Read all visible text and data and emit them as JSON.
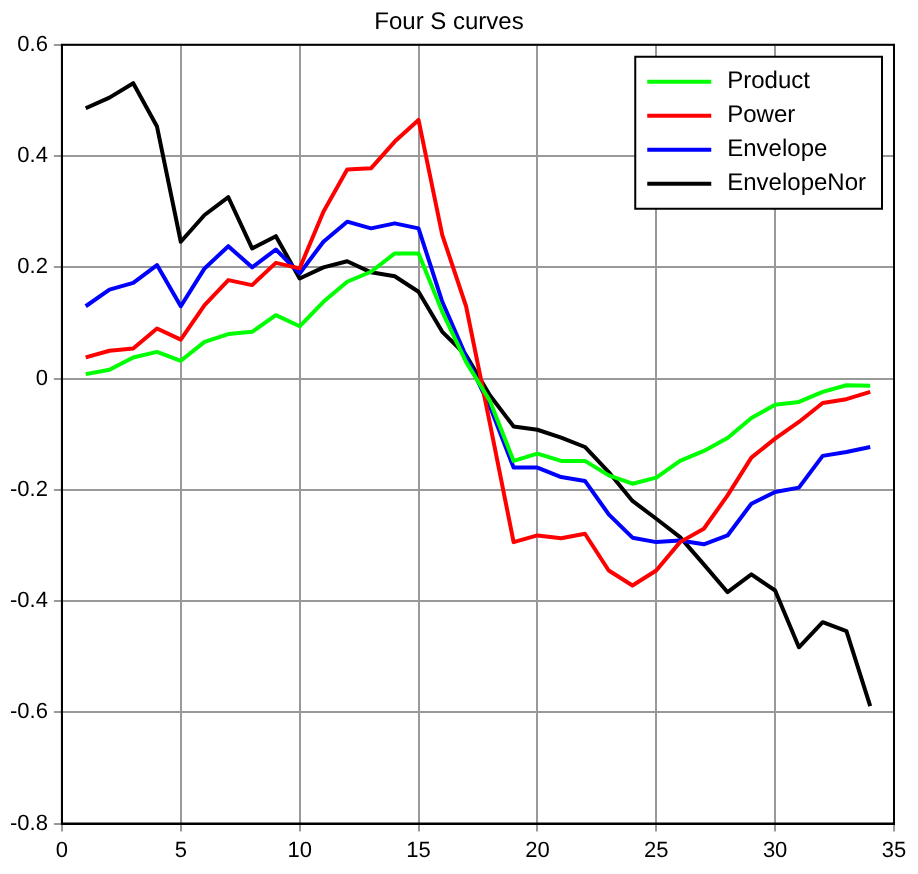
{
  "chart_data": {
    "type": "line",
    "title": "Four S curves",
    "x": [
      1,
      2,
      3,
      4,
      5,
      6,
      7,
      8,
      9,
      10,
      11,
      12,
      13,
      14,
      15,
      16,
      17,
      18,
      19,
      20,
      21,
      22,
      23,
      24,
      25,
      26,
      27,
      28,
      29,
      30,
      31,
      32,
      33,
      34
    ],
    "xlim": [
      0,
      35
    ],
    "xticks": [
      0,
      5,
      10,
      15,
      20,
      25,
      30,
      35
    ],
    "ylim": [
      -0.8,
      0.6
    ],
    "yticks": [
      -0.8,
      -0.6,
      -0.4,
      -0.2,
      0,
      0.2,
      0.4,
      0.6
    ],
    "grid": true,
    "legend": "top right",
    "marker": "none",
    "line_style": "solid",
    "series": [
      {
        "name": "Product",
        "color": "#00ff00",
        "values": [
          0.008,
          0.016,
          0.038,
          0.048,
          0.032,
          0.066,
          0.08,
          0.084,
          0.114,
          0.094,
          0.138,
          0.174,
          0.192,
          0.225,
          0.225,
          0.12,
          0.03,
          -0.04,
          -0.148,
          -0.135,
          -0.148,
          -0.148,
          -0.174,
          -0.189,
          -0.178,
          -0.148,
          -0.13,
          -0.107,
          -0.071,
          -0.047,
          -0.042,
          -0.024,
          -0.012,
          -0.013
        ]
      },
      {
        "name": "Power",
        "color": "#ff0000",
        "values": [
          0.038,
          0.05,
          0.054,
          0.09,
          0.07,
          0.132,
          0.177,
          0.168,
          0.208,
          0.198,
          0.3,
          0.376,
          0.378,
          0.426,
          0.465,
          0.258,
          0.13,
          -0.08,
          -0.294,
          -0.282,
          -0.287,
          -0.279,
          -0.345,
          -0.372,
          -0.345,
          -0.294,
          -0.27,
          -0.21,
          -0.142,
          -0.108,
          -0.078,
          -0.044,
          -0.037,
          -0.024
        ]
      },
      {
        "name": "Envelope",
        "color": "#0000ff",
        "values": [
          0.13,
          0.16,
          0.172,
          0.204,
          0.13,
          0.198,
          0.238,
          0.2,
          0.232,
          0.189,
          0.246,
          0.282,
          0.27,
          0.279,
          0.27,
          0.138,
          0.04,
          -0.05,
          -0.16,
          -0.16,
          -0.177,
          -0.184,
          -0.244,
          -0.286,
          -0.294,
          -0.291,
          -0.298,
          -0.282,
          -0.225,
          -0.204,
          -0.196,
          -0.139,
          -0.132,
          -0.123
        ]
      },
      {
        "name": "EnvelopeNor",
        "color": "#000000",
        "values": [
          0.486,
          0.505,
          0.531,
          0.453,
          0.246,
          0.294,
          0.326,
          0.234,
          0.256,
          0.18,
          0.2,
          0.211,
          0.191,
          0.184,
          0.156,
          0.084,
          0.042,
          -0.03,
          -0.086,
          -0.092,
          -0.106,
          -0.123,
          -0.168,
          -0.22,
          -0.252,
          -0.285,
          -0.334,
          -0.384,
          -0.352,
          -0.381,
          -0.483,
          -0.438,
          -0.454,
          -0.589
        ]
      }
    ]
  }
}
